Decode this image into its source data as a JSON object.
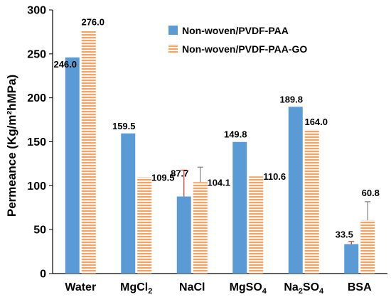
{
  "chart_data": {
    "type": "bar",
    "ylabel": "Permeance (Kg/m²hMPa)",
    "ylim": [
      0,
      300
    ],
    "yticks": [
      0,
      50,
      100,
      150,
      200,
      250,
      300
    ],
    "categories": [
      {
        "base": "Water",
        "sub": ""
      },
      {
        "base": "MgCl",
        "sub": "2"
      },
      {
        "base": "NaCl",
        "sub": ""
      },
      {
        "base": "MgSO",
        "sub": "4"
      },
      {
        "base": "Na",
        "sub": "2",
        "rest": "SO",
        "sub2": "4"
      },
      {
        "base": "BSA",
        "sub": ""
      }
    ],
    "series": [
      {
        "name": "Non-woven/PVDF-PAA",
        "color": "#5b9bd5",
        "pattern": "solid",
        "values": [
          246.0,
          159.5,
          87.7,
          149.8,
          189.8,
          33.5
        ],
        "labels": [
          "246.0",
          "159.5",
          "87.7",
          "149.8",
          "189.8",
          "33.5"
        ],
        "error": [
          null,
          null,
          30,
          null,
          null,
          3
        ],
        "error_color": "#c0392b"
      },
      {
        "name": "Non-woven/PVDF-PAA-GO",
        "color": "#f4a460",
        "pattern": "horizontal-stripes",
        "values": [
          276.0,
          109.5,
          104.1,
          110.6,
          164.0,
          60.8
        ],
        "labels": [
          "276.0",
          "109.5",
          "104.1",
          "110.6",
          "164.0",
          "60.8"
        ],
        "error": [
          null,
          null,
          17,
          null,
          null,
          21
        ],
        "error_color": "#7f7f7f"
      }
    ],
    "legend": "top-center",
    "grid": false
  }
}
